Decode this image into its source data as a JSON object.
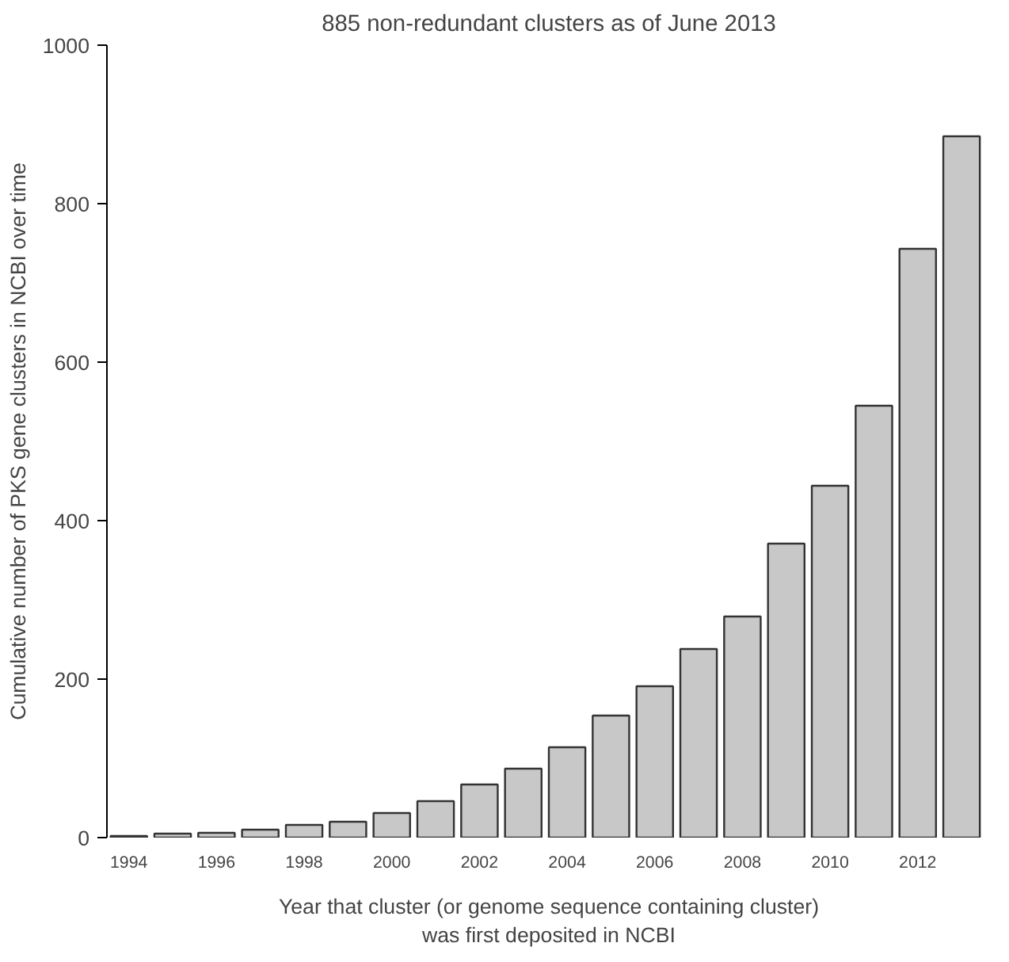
{
  "chart_data": {
    "type": "bar",
    "title": "885 non-redundant clusters as of June 2013",
    "xlabel": "Year that cluster (or genome sequence containing cluster)\nwas first deposited in NCBI",
    "ylabel": "Cumulative number of PKS gene clusters in NCBI over time",
    "categories": [
      "1994",
      null,
      "1996",
      null,
      "1998",
      null,
      "2000",
      null,
      "2002",
      null,
      "2004",
      null,
      "2006",
      null,
      "2008",
      null,
      "2010",
      null,
      "2012",
      null
    ],
    "values": [
      2,
      5,
      6,
      10,
      16,
      20,
      31,
      46,
      67,
      87,
      114,
      154,
      191,
      238,
      279,
      371,
      444,
      545,
      743,
      885
    ],
    "color": "#c8c8c8",
    "ylim": [
      0,
      1000
    ],
    "yticks": [
      0,
      200,
      400,
      600,
      800,
      1000
    ],
    "grid": false
  }
}
